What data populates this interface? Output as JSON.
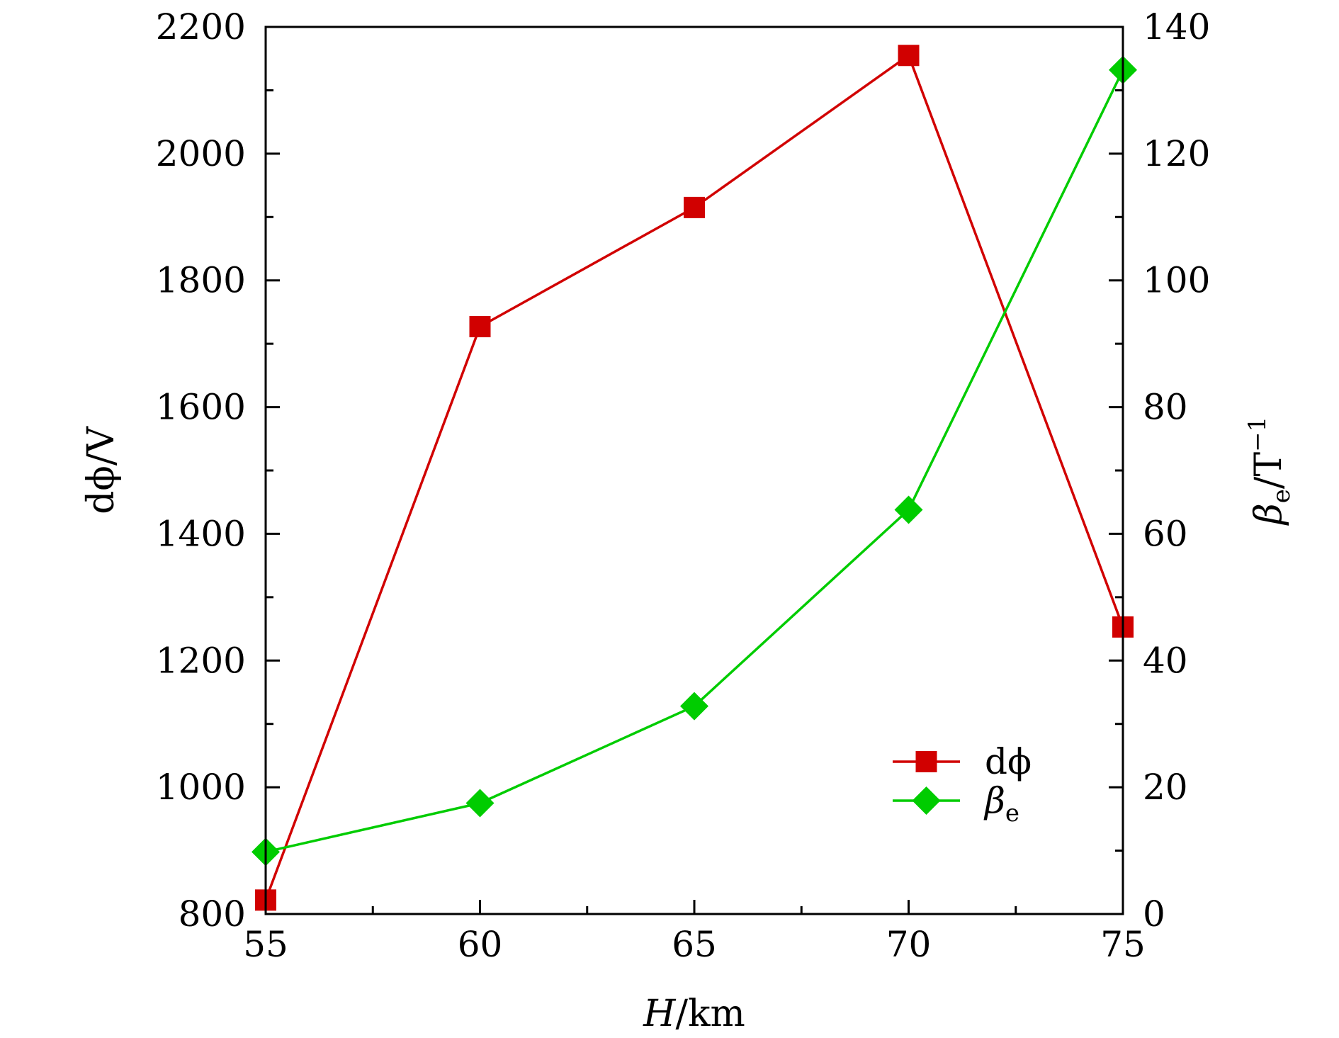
{
  "chart_data": {
    "type": "line",
    "x": [
      55,
      60,
      65,
      70,
      75
    ],
    "xlabel": {
      "var": "H",
      "unit": "/km"
    },
    "xlim": [
      55,
      75
    ],
    "xticks": [
      "55",
      "60",
      "65",
      "70",
      "75"
    ],
    "ylabel_left": {
      "var": "dϕ",
      "unit": "/V"
    },
    "ylim_left": [
      800,
      2200
    ],
    "yticks_left": [
      "800",
      "1000",
      "1200",
      "1400",
      "1600",
      "1800",
      "2000",
      "2200"
    ],
    "ylabel_right": {
      "var": "β",
      "sub": "e",
      "unit": "/T",
      "sup": "−1"
    },
    "ylim_right": [
      0,
      140
    ],
    "yticks_right": [
      "0",
      "20",
      "40",
      "60",
      "80",
      "100",
      "120",
      "140"
    ],
    "grid": false,
    "legend_position": "bottom-right",
    "series": [
      {
        "name": "dϕ",
        "axis": "left",
        "color": "#d10000",
        "marker": "square",
        "values": [
          822,
          1727,
          1915,
          2155,
          1253
        ]
      },
      {
        "name": "β",
        "name_sub": "e",
        "axis": "right",
        "color": "#00cc00",
        "marker": "diamond",
        "values": [
          9.8,
          17.5,
          32.8,
          63.8,
          133.2
        ]
      }
    ]
  }
}
